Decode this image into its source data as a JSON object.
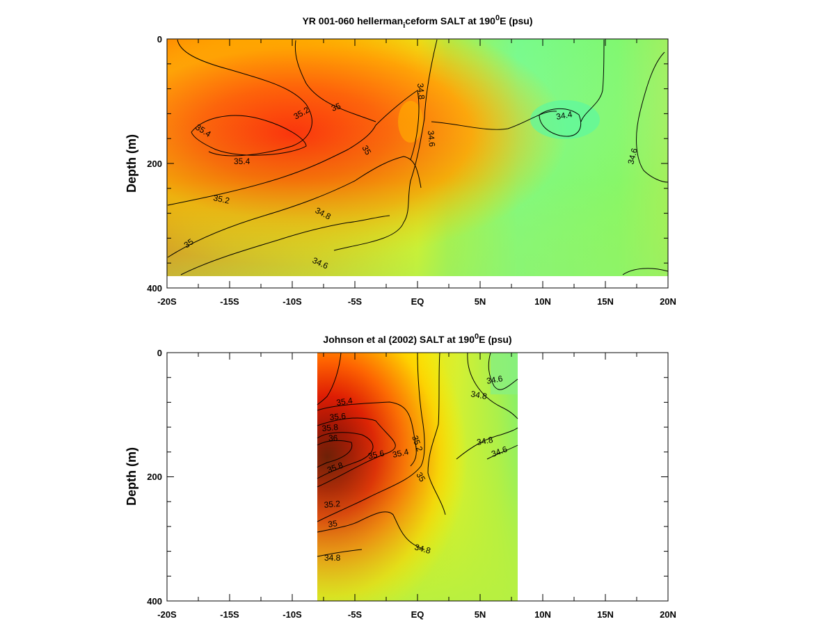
{
  "panels": [
    {
      "id": "top",
      "title_main": "YR 001-060 hellerman",
      "title_sub": "i",
      "title_rest": "ceform SALT at 190",
      "title_sup": "0",
      "title_end": "E (psu)",
      "ylabel": "Depth (m)",
      "x_ticks": [
        "-20S",
        "-15S",
        "-10S",
        "-5S",
        "EQ",
        "5N",
        "10N",
        "15N",
        "20N"
      ],
      "y_ticks": [
        "0",
        "200",
        "400"
      ],
      "contour_labels": [
        "35.4",
        "35.2",
        "35",
        "34.8",
        "34.6",
        "35.4",
        "35.2",
        "35",
        "34.8",
        "34.6",
        "34.4",
        "34.6",
        "35",
        "34.6"
      ]
    },
    {
      "id": "bottom",
      "title_main": "Johnson et al (2002) SALT at 190",
      "title_sub": "",
      "title_rest": "",
      "title_sup": "0",
      "title_end": "E (psu)",
      "ylabel": "Depth (m)",
      "x_ticks": [
        "-20S",
        "-15S",
        "-10S",
        "-5S",
        "EQ",
        "5N",
        "10N",
        "15N",
        "20N"
      ],
      "y_ticks": [
        "0",
        "200",
        "400"
      ],
      "contour_labels": [
        "35.4",
        "35.6",
        "35.8",
        "36",
        "35.6",
        "35.8",
        "35.4",
        "35.2",
        "35",
        "35.2",
        "35",
        "34.8",
        "34.8",
        "34.6",
        "34.8",
        "34.8",
        "34.6"
      ]
    }
  ],
  "chart_data": [
    {
      "type": "heatmap",
      "title": "YR 001-060 hellerman_iceform SALT at 190°E (psu)",
      "xlabel": "",
      "ylabel": "Depth (m)",
      "xlim": [
        -20,
        20
      ],
      "ylim": [
        400,
        0
      ],
      "data_extent": {
        "x": [
          -20,
          20
        ],
        "depth": [
          0,
          380
        ]
      },
      "contour_levels": [
        34.4,
        34.6,
        34.8,
        35.0,
        35.2,
        35.4
      ],
      "colors": {
        "low": "#66ff99",
        "mid": "#ffe000",
        "high": "#ff2a00"
      }
    },
    {
      "type": "heatmap",
      "title": "Johnson et al (2002) SALT at 190°E (psu)",
      "xlabel": "",
      "ylabel": "Depth (m)",
      "xlim": [
        -20,
        20
      ],
      "ylim": [
        400,
        0
      ],
      "data_extent": {
        "x": [
          -8,
          8
        ],
        "depth": [
          0,
          400
        ]
      },
      "contour_levels": [
        34.6,
        34.8,
        35.0,
        35.2,
        35.4,
        35.6,
        35.8,
        36.0
      ],
      "colors": {
        "low": "#66ff99",
        "mid": "#ffe000",
        "high": "#ff2a00",
        "max": "#700000"
      }
    }
  ]
}
